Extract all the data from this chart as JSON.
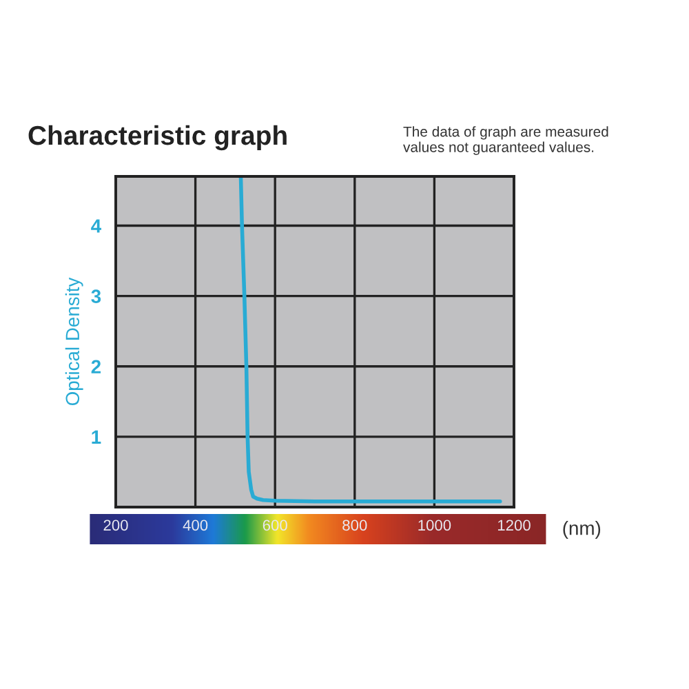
{
  "chart_data": {
    "type": "line",
    "title": "Characteristic graph",
    "annotations": [
      "The data of graph are measured\nvalues not guaranteed values."
    ],
    "xlabel": "(nm)",
    "ylabel": "Optical Density",
    "x": [
      514,
      517,
      523,
      528,
      531,
      534,
      540,
      545,
      555,
      570,
      600,
      700,
      900,
      1100,
      1165
    ],
    "series": [
      {
        "color": "#29abd4",
        "values": [
          4.7,
          4,
          3,
          2,
          1,
          0.5,
          0.25,
          0.15,
          0.12,
          0.1,
          0.09,
          0.08,
          0.08,
          0.08,
          0.08
        ]
      }
    ],
    "xlim": [
      200,
      1200
    ],
    "xticks": [
      200,
      400,
      600,
      800,
      1000,
      1200
    ],
    "ylim": [
      0,
      4.7
    ],
    "yticks": [
      {
        "value": 0,
        "label": null
      },
      1,
      2,
      3,
      4
    ],
    "grid": true,
    "marker": "none",
    "line_style": "solid",
    "legend": false
  }
}
